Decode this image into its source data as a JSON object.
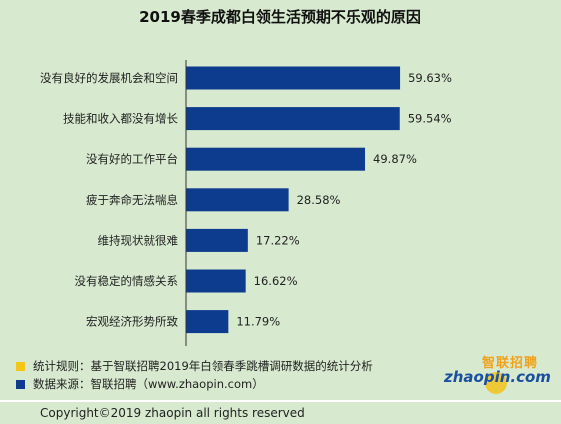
{
  "chart_data": {
    "type": "bar",
    "orientation": "horizontal",
    "title": "2019春季成都白领生活预期不乐观的原因",
    "categories": [
      "没有良好的发展机会和空间",
      "技能和收入都没有增长",
      "没有好的工作平台",
      "疲于奔命无法喘息",
      "维持现状就很难",
      "没有稳定的情感关系",
      "宏观经济形势所致"
    ],
    "values": [
      59.63,
      59.54,
      49.87,
      28.58,
      17.22,
      16.62,
      11.79
    ],
    "value_labels": [
      "59.63%",
      "59.54%",
      "49.87%",
      "28.58%",
      "17.22%",
      "16.62%",
      "11.79%"
    ],
    "unit": "%",
    "xlim": [
      0,
      100
    ],
    "grid": false,
    "legend": "none",
    "bar_color": "#0d3b8e"
  },
  "notes": {
    "rule": "统计规则：基于智联招聘2019年白领春季跳槽调研数据的统计分析",
    "source": "数据来源：智联招聘（www.zhaopin.com）",
    "rule_marker_color": "#f5c518",
    "source_marker_color": "#0d3b8e"
  },
  "logo": {
    "cn": "智联招聘",
    "en": "zhaopin.com"
  },
  "footer": {
    "copyright": "Copyright©2019 zhaopin all rights reserved"
  },
  "colors": {
    "background": "#d7e9cf",
    "axis": "#333333"
  }
}
